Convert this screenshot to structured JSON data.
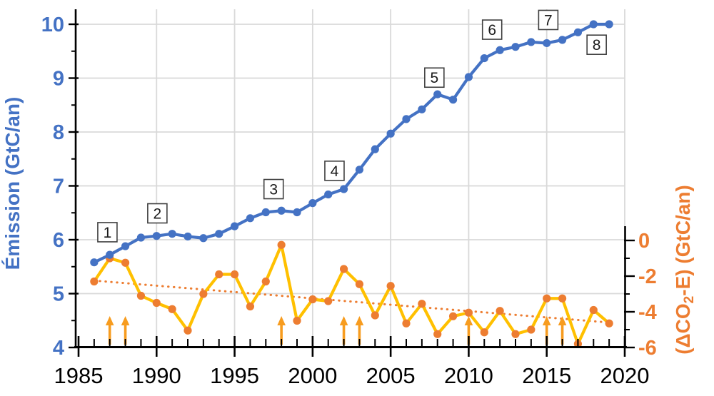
{
  "chart_data": {
    "type": "line",
    "title": "",
    "background": "#ffffff",
    "grid": {
      "show": true,
      "color": "#d9d9d9"
    },
    "x_axis": {
      "min": 1985,
      "max": 2020,
      "tick_labels": [
        "1985",
        "1990",
        "1995",
        "2000",
        "2005",
        "2010",
        "2015",
        "2020"
      ],
      "tick_values": [
        1985,
        1990,
        1995,
        2000,
        2005,
        2010,
        2015,
        2020
      ],
      "minor_step": 1,
      "color": "#000000"
    },
    "left_axis": {
      "title": "Émission (GtC/an)",
      "color": "#4472C4",
      "min": 4,
      "max": 10,
      "tick_labels": [
        "10",
        "9",
        "8",
        "7",
        "6",
        "5",
        "4"
      ],
      "tick_values": [
        10,
        9,
        8,
        7,
        6,
        5,
        4
      ],
      "minor_values": [
        4.5,
        5.5,
        6.5,
        7.5,
        8.5,
        9.5
      ]
    },
    "right_axis": {
      "title": "(ΔCO₂-E) (GtC/an)",
      "color": "#ED7D31",
      "min": -6,
      "max": 0,
      "tick_labels": [
        "0",
        "-2",
        "-4",
        "-6"
      ],
      "tick_values": [
        0,
        -2,
        -4,
        -6
      ],
      "minor_values": [
        -1,
        -3,
        -5
      ]
    },
    "x": [
      1986,
      1987,
      1988,
      1989,
      1990,
      1991,
      1992,
      1993,
      1994,
      1995,
      1996,
      1997,
      1998,
      1999,
      2000,
      2001,
      2002,
      2003,
      2004,
      2005,
      2006,
      2007,
      2008,
      2009,
      2010,
      2011,
      2012,
      2013,
      2014,
      2015,
      2016,
      2017,
      2018,
      2019
    ],
    "series": [
      {
        "name": "Émission (GtC/an)",
        "axis": "left",
        "line_color": "#4472C4",
        "marker_color": "#4472C4",
        "values": [
          5.58,
          5.72,
          5.88,
          6.04,
          6.07,
          6.11,
          6.06,
          6.03,
          6.11,
          6.25,
          6.4,
          6.51,
          6.54,
          6.51,
          6.68,
          6.84,
          6.94,
          7.3,
          7.68,
          7.97,
          8.24,
          8.42,
          8.7,
          8.6,
          9.02,
          9.37,
          9.52,
          9.58,
          9.67,
          9.65,
          9.71,
          9.85,
          10.0,
          10.0
        ]
      },
      {
        "name": "(ΔCO₂-E) (GtC/an)",
        "axis": "right",
        "line_color": "#FFC000",
        "marker_color": "#ED7D31",
        "values": [
          -2.3,
          -1.0,
          -1.25,
          -3.1,
          -3.5,
          -3.85,
          -5.05,
          -3.0,
          -1.9,
          -1.9,
          -3.7,
          -2.3,
          -0.25,
          -4.5,
          -3.3,
          -3.4,
          -1.6,
          -2.45,
          -4.2,
          -2.55,
          -4.65,
          -3.55,
          -5.25,
          -4.25,
          -4.05,
          -5.15,
          -3.95,
          -5.25,
          -5.0,
          -3.25,
          -3.25,
          -5.8,
          -3.9,
          -4.65
        ]
      }
    ],
    "trend_line": {
      "axis": "right",
      "color": "#ED7D31",
      "style": "dotted",
      "start": {
        "year": 1986,
        "value": -2.25
      },
      "end": {
        "year": 2019,
        "value": -4.6
      }
    },
    "event_arrows": {
      "color": "#F79C1F",
      "years": [
        1987,
        1988,
        1998,
        2002,
        2003,
        2010,
        2015,
        2016
      ]
    },
    "point_labels": [
      {
        "text": "1",
        "year": 1986.85,
        "value": 6.14
      },
      {
        "text": "2",
        "year": 1990.05,
        "value": 6.49
      },
      {
        "text": "3",
        "year": 1997.5,
        "value": 6.94
      },
      {
        "text": "4",
        "year": 2001.4,
        "value": 7.28
      },
      {
        "text": "5",
        "year": 2007.8,
        "value": 9.01
      },
      {
        "text": "6",
        "year": 2011.5,
        "value": 9.9
      },
      {
        "text": "7",
        "year": 2015.1,
        "value": 10.08
      },
      {
        "text": "8",
        "year": 2018.2,
        "value": 9.62
      }
    ],
    "legend": {
      "show": false
    }
  }
}
